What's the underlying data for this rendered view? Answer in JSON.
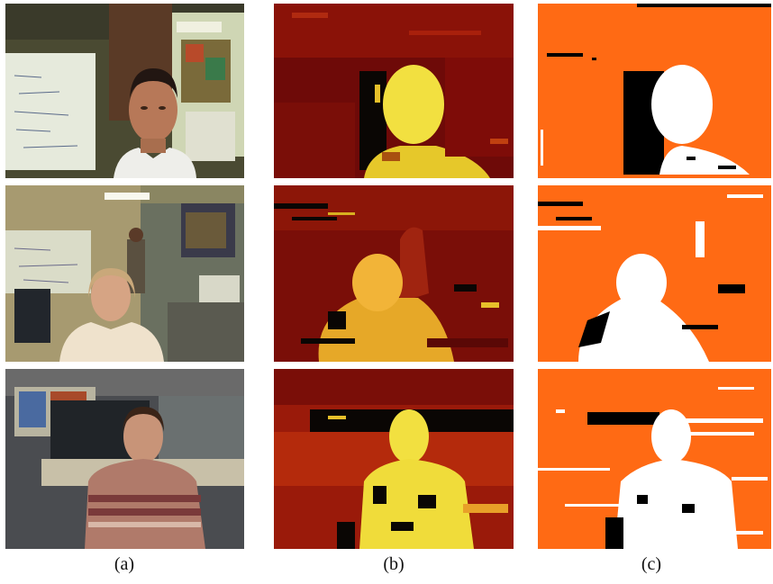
{
  "columns": [
    {
      "label": "(a)",
      "content": "color-frame"
    },
    {
      "label": "(b)",
      "content": "disparity-map"
    },
    {
      "label": "(c)",
      "content": "foreground-segmentation"
    }
  ],
  "rows": [
    "office-man-whiteboard",
    "office-woman-chair",
    "office-man-sweater"
  ],
  "colors": {
    "disparity_dark": "#6e0a08",
    "disparity_mid": "#a61d0c",
    "disparity_bright": "#f4ec3a",
    "segmentation_background": "#ff6a14",
    "segmentation_foreground": "#ffffff",
    "segmentation_shadow": "#000000"
  }
}
